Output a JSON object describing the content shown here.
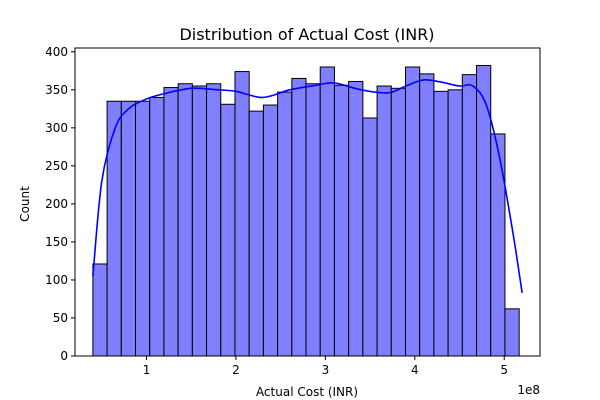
{
  "chart_data": {
    "type": "bar",
    "title": "Distribution of Actual Cost (INR)",
    "xlabel": "Actual Cost (INR)",
    "ylabel": "Count",
    "x_offset_label": "1e8",
    "xlim": [
      0.2,
      5.4
    ],
    "ylim": [
      0,
      405
    ],
    "x_ticks": [
      1,
      2,
      3,
      4,
      5
    ],
    "y_ticks": [
      0,
      50,
      100,
      150,
      200,
      250,
      300,
      350,
      400
    ],
    "grid": false,
    "legend": "none",
    "colors": {
      "bar_fill": "#7f7fff",
      "bar_edge": "#000000",
      "kde_line": "#0000ff",
      "axes": "#000000"
    },
    "bin_start": 0.4,
    "bin_width": 0.1589,
    "values": [
      121,
      335,
      335,
      335,
      340,
      353,
      358,
      355,
      358,
      331,
      374,
      322,
      330,
      347,
      365,
      358,
      380,
      356,
      361,
      313,
      355,
      352,
      380,
      371,
      348,
      350,
      370,
      382,
      292,
      62
    ],
    "kde": {
      "x": [
        0.4,
        0.5,
        0.65,
        0.8,
        1.0,
        1.2,
        1.5,
        1.8,
        2.0,
        2.3,
        2.6,
        2.9,
        3.1,
        3.4,
        3.7,
        3.9,
        4.1,
        4.3,
        4.5,
        4.65,
        4.8,
        4.95,
        5.1,
        5.2
      ],
      "y": [
        105,
        230,
        300,
        325,
        338,
        345,
        352,
        350,
        348,
        340,
        350,
        356,
        359,
        350,
        346,
        355,
        363,
        360,
        355,
        355,
        330,
        260,
        160,
        83
      ]
    }
  }
}
